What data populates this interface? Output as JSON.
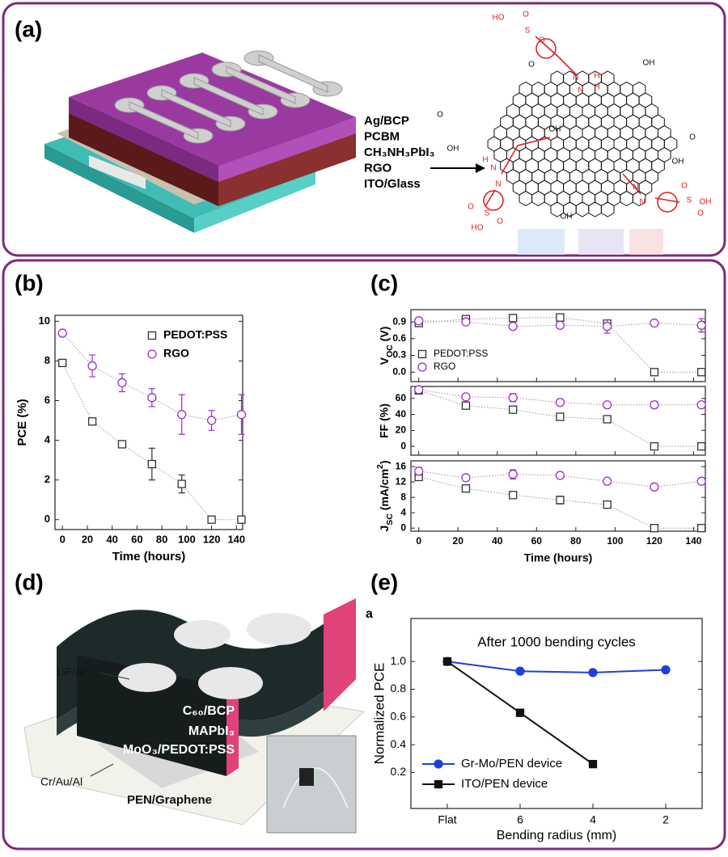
{
  "panels": {
    "labels": [
      "(a)",
      "(b)",
      "(c)",
      "(d)",
      "(e)"
    ],
    "a_layers": [
      "Ag/BCP",
      "PCBM",
      "CH₃NH₃PbI₃",
      "RGO",
      "ITO/Glass"
    ],
    "a_structure_labels": [
      "HO",
      "S",
      "O",
      "O",
      "N",
      "H",
      "H",
      "N",
      "O",
      "OH",
      "O",
      "OH",
      "OH",
      "O",
      "OH",
      "N",
      "N",
      "H",
      "N",
      "N",
      "HO",
      "S",
      "O",
      "O",
      "OH",
      "S",
      "O",
      "O",
      "OH"
    ],
    "d_labels": [
      "LiF/Al",
      "C₆₀/BCP",
      "MAPbI₃",
      "MoO₃/PEDOT:PSS",
      "PEN/Graphene",
      "Cr/Au/Al"
    ],
    "e_corner": "a"
  },
  "chart_data": [
    {
      "type": "line",
      "xlabel": "Time (hours)",
      "ylabel": "PCE (%)",
      "x": [
        0,
        24,
        48,
        72,
        96,
        120,
        144
      ],
      "xlim": [
        -6,
        145
      ],
      "xticks": [
        0,
        20,
        40,
        60,
        80,
        100,
        120,
        140
      ],
      "ylim": [
        -0.5,
        10.3
      ],
      "yticks": [
        0,
        2,
        4,
        6,
        8,
        10
      ],
      "line_style": "dotted",
      "legend": "upper right",
      "series": [
        {
          "name": "PEDOT:PSS",
          "color": "#333333",
          "marker": "square",
          "values": [
            7.9,
            4.95,
            3.8,
            2.8,
            1.8,
            0,
            0
          ],
          "errors": [
            0.1,
            0.1,
            0.15,
            0.8,
            0.45,
            0,
            0
          ]
        },
        {
          "name": "RGO",
          "color": "#9b30c8",
          "marker": "circle",
          "values": [
            9.4,
            7.75,
            6.9,
            6.15,
            5.3,
            5.0,
            5.3
          ],
          "errors": [
            0.1,
            0.55,
            0.45,
            0.45,
            1.0,
            0.5,
            1.0
          ]
        }
      ]
    },
    {
      "type": "line",
      "ylabel": [
        {
          "text": "V"
        },
        {
          "text": "OC",
          "sub": true
        },
        {
          "text": " (V)"
        }
      ],
      "x": [
        0,
        24,
        48,
        72,
        96,
        120,
        144
      ],
      "xlim": [
        -4,
        146
      ],
      "ylim": [
        -0.17,
        1.12
      ],
      "yticks": [
        {
          "value": 0,
          "label": "0.0"
        },
        0.3,
        0.6,
        0.9
      ],
      "line_style": "dotted",
      "legend": "lower left",
      "series": [
        {
          "name": "PEDOT:PSS",
          "color": "#333333",
          "marker": "square",
          "values": [
            0.88,
            0.95,
            0.97,
            0.98,
            0.87,
            0,
            0
          ],
          "errors": [
            0.03,
            0.03,
            0.02,
            0.02,
            0.05,
            0,
            0
          ]
        },
        {
          "name": "RGO",
          "color": "#9b30c8",
          "marker": "circle",
          "values": [
            0.92,
            0.9,
            0.82,
            0.84,
            0.82,
            0.88,
            0.84
          ],
          "errors": [
            0.05,
            0.05,
            0.03,
            0.03,
            0.12,
            0.05,
            0.12
          ]
        }
      ]
    },
    {
      "type": "line",
      "ylabel": "FF (%)",
      "x": [
        0,
        24,
        48,
        72,
        96,
        120,
        144
      ],
      "xlim": [
        -4,
        146
      ],
      "ylim": [
        -11,
        75
      ],
      "yticks": [
        0,
        20,
        40,
        60
      ],
      "line_style": "dotted",
      "series": [
        {
          "name": "PEDOT:PSS",
          "color": "#333333",
          "marker": "square",
          "values": [
            70,
            51,
            46,
            37,
            34,
            0,
            0
          ],
          "errors": [
            2,
            2,
            2,
            2,
            2,
            0,
            0
          ]
        },
        {
          "name": "RGO",
          "color": "#9b30c8",
          "marker": "circle",
          "values": [
            71,
            62,
            61,
            55,
            52,
            52,
            52
          ],
          "errors": [
            3,
            2,
            5,
            4,
            2,
            4,
            2
          ]
        }
      ]
    },
    {
      "type": "line",
      "xlabel": "Time (hours)",
      "ylabel": [
        {
          "text": "J"
        },
        {
          "text": "SC",
          "sub": true
        },
        {
          "text": " (mA/cm"
        },
        {
          "text": "2",
          "sup": true
        },
        {
          "text": ")"
        }
      ],
      "x": [
        0,
        24,
        48,
        72,
        96,
        120,
        144
      ],
      "xlim": [
        -4,
        146
      ],
      "xticks": [
        0,
        20,
        40,
        60,
        80,
        100,
        120,
        140
      ],
      "ylim": [
        -0.8,
        17.5
      ],
      "yticks": [
        0,
        4,
        8,
        12,
        16
      ],
      "line_style": "dotted",
      "series": [
        {
          "name": "PEDOT:PSS",
          "color": "#333333",
          "marker": "square",
          "values": [
            13.3,
            10.3,
            8.6,
            7.3,
            6.1,
            0,
            0
          ],
          "errors": [
            0.5,
            0.3,
            0.6,
            1.0,
            0.4,
            0,
            0
          ]
        },
        {
          "name": "RGO",
          "color": "#9b30c8",
          "marker": "circle",
          "values": [
            14.8,
            13.1,
            14.0,
            13.7,
            12.2,
            10.7,
            12.2
          ],
          "errors": [
            1.0,
            0.4,
            1.2,
            0.8,
            0.4,
            0.5,
            0.4
          ]
        }
      ]
    },
    {
      "type": "line",
      "xlabel": "Bending radius (mm)",
      "ylabel": "Normalized PCE",
      "annotation": "After 1000 bending cycles",
      "categories": [
        "Flat",
        "6",
        "4",
        "2"
      ],
      "ylim": [
        -0.06,
        1.31
      ],
      "yticks": [
        0.2,
        0.4,
        0.6,
        0.8,
        {
          "value": 1,
          "label": "1.0"
        }
      ],
      "line_style": "solid",
      "legend": "lower left",
      "series": [
        {
          "name": "Gr-Mo/PEN device",
          "color": "#1f3fdb",
          "marker": "circle",
          "filled": true,
          "values": [
            1.0,
            0.93,
            0.92,
            0.94
          ]
        },
        {
          "name": "ITO/PEN device",
          "color": "#111111",
          "marker": "square",
          "filled": true,
          "values": [
            1.0,
            0.63,
            0.26,
            null
          ]
        }
      ]
    }
  ]
}
